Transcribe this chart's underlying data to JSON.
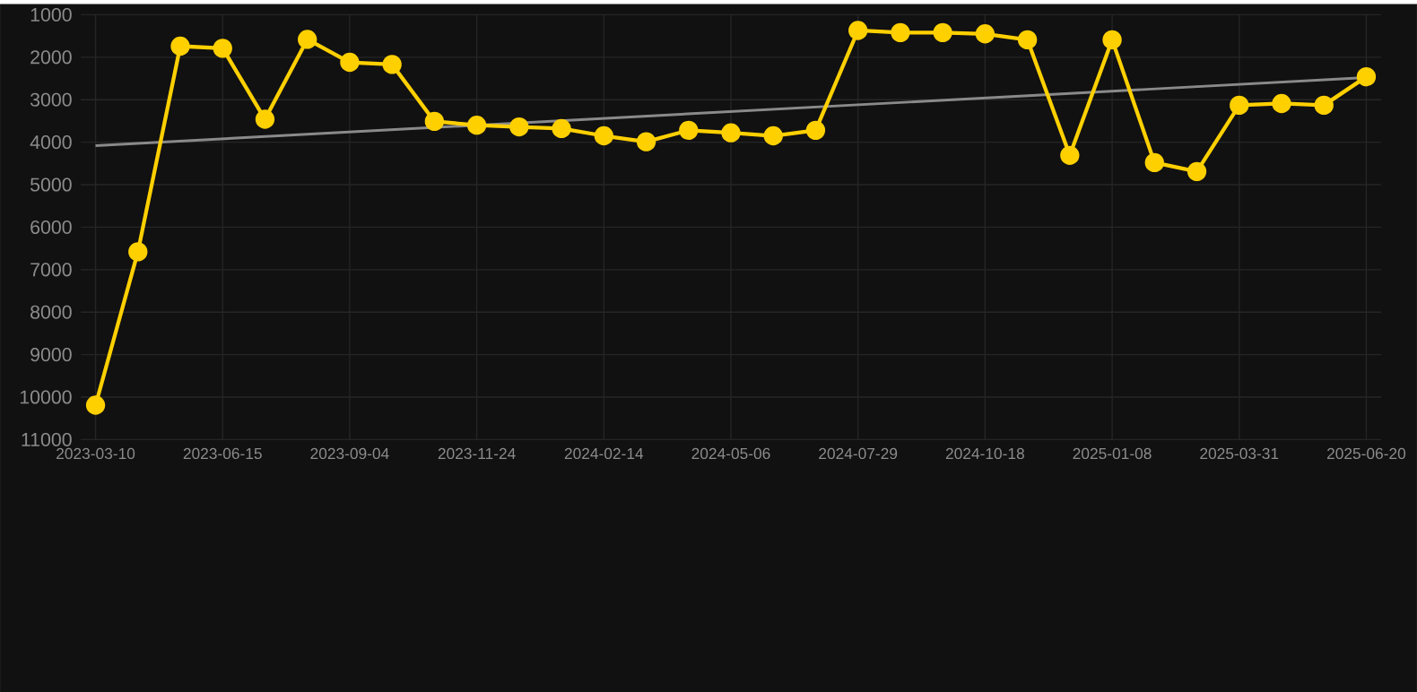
{
  "chart_data": {
    "type": "line",
    "categories": [
      "2023-03-10",
      null,
      null,
      "2023-06-15",
      null,
      null,
      "2023-09-04",
      null,
      null,
      "2023-11-24",
      null,
      null,
      "2024-02-14",
      null,
      null,
      "2024-05-06",
      null,
      null,
      "2024-07-29",
      null,
      null,
      "2024-10-18",
      null,
      null,
      "2025-01-08",
      null,
      null,
      "2025-03-31",
      null,
      null,
      "2025-06-20"
    ],
    "series": [
      {
        "color": "#ffd000",
        "marker": "circle",
        "values": [
          10190,
          6580,
          1740,
          1790,
          3460,
          1580,
          2120,
          2170,
          3510,
          3600,
          3640,
          3680,
          3850,
          3990,
          3720,
          3780,
          3850,
          3720,
          1370,
          1420,
          1420,
          1450,
          1590,
          4310,
          1590,
          4480,
          4690,
          3130,
          3090,
          3130,
          2460
        ]
      },
      {
        "color": "#8a8a8a",
        "marker": "none",
        "values": [
          4080,
          null,
          null,
          null,
          null,
          null,
          null,
          null,
          null,
          null,
          null,
          null,
          null,
          null,
          null,
          null,
          null,
          null,
          null,
          null,
          null,
          null,
          null,
          null,
          null,
          null,
          null,
          null,
          null,
          null,
          2480
        ]
      }
    ],
    "ylim": [
      11000,
      1000
    ],
    "yticks": [
      1000,
      2000,
      3000,
      4000,
      5000,
      6000,
      7000,
      8000,
      9000,
      10000,
      11000
    ],
    "grid": true
  }
}
